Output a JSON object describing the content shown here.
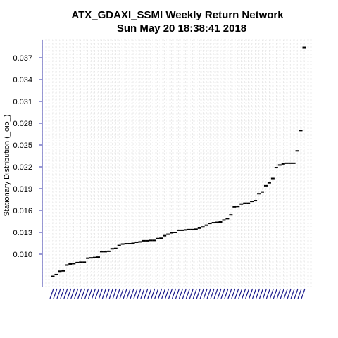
{
  "chart_data": {
    "type": "scatter",
    "title": "ATX_GDAXI_SSMI  Weekly Return Network",
    "subtitle": "Sun May 20 18:38:41 2018",
    "xlabel": "",
    "ylabel": "Stationary Distribution (_oio_)",
    "ylim": [
      0.0065,
      0.0395
    ],
    "y_ticks": [
      "0.010",
      "0.013",
      "0.016",
      "0.019",
      "0.022",
      "0.025",
      "0.028",
      "0.031",
      "0.034",
      "0.037"
    ],
    "grid": true,
    "marker_color": "#000000",
    "axis_color": "#3333aa",
    "grid_color": "#d9d9d9",
    "series": [
      {
        "values": [
          0.00695,
          0.0072,
          0.00765,
          0.0077,
          0.0085,
          0.00865,
          0.0087,
          0.00885,
          0.0089,
          0.0089,
          0.00945,
          0.0095,
          0.00955,
          0.0096,
          0.01035,
          0.01035,
          0.0104,
          0.01075,
          0.0108,
          0.0112,
          0.0114,
          0.01145,
          0.01145,
          0.0115,
          0.01165,
          0.0117,
          0.01185,
          0.01185,
          0.0119,
          0.0119,
          0.01215,
          0.0122,
          0.01255,
          0.01275,
          0.01295,
          0.013,
          0.0133,
          0.0133,
          0.01335,
          0.0134,
          0.0134,
          0.01345,
          0.0136,
          0.01375,
          0.014,
          0.01425,
          0.01435,
          0.0144,
          0.01445,
          0.0147,
          0.0149,
          0.0154,
          0.0165,
          0.01655,
          0.0169,
          0.017,
          0.017,
          0.01725,
          0.01735,
          0.0183,
          0.01855,
          0.0194,
          0.0198,
          0.0204,
          0.0219,
          0.02225,
          0.0224,
          0.0225,
          0.0225,
          0.0225,
          0.0242,
          0.027,
          0.0384
        ]
      }
    ]
  }
}
